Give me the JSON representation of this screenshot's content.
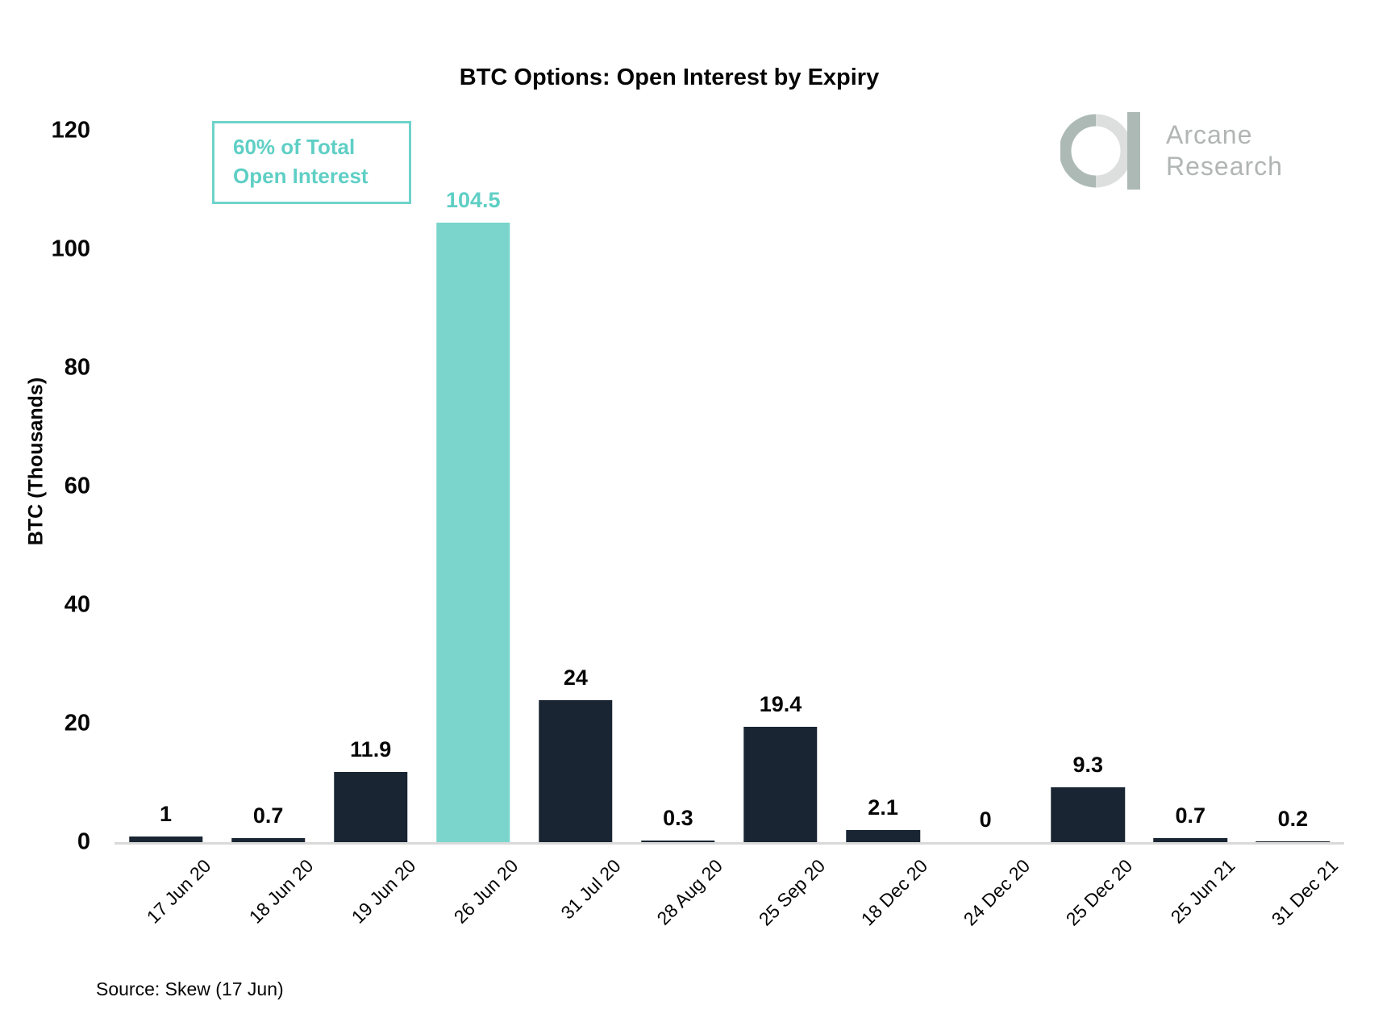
{
  "title": "BTC Options: Open Interest by Expiry",
  "annotation": {
    "line1": "60% of Total",
    "line2": "Open Interest"
  },
  "logo": {
    "line1": "Arcane",
    "line2": "Research",
    "mark": "arcane-a-logo"
  },
  "source": "Source: Skew (17 Jun)",
  "colors": {
    "bar": "#1a2533",
    "highlight_bar": "#7bd5cc",
    "accent_text": "#5fcfc5",
    "annotation_border": "#6fd3ca",
    "axis_line": "#d9d9d9",
    "label_text": "#060606",
    "logo_sage": "#adb9b5",
    "logo_light": "#dcdfdd",
    "logo_text": "#b1b5b4"
  },
  "chart_data": {
    "type": "bar",
    "title": "BTC Options: Open Interest by Expiry",
    "categories": [
      "17 Jun 20",
      "18 Jun 20",
      "19 Jun 20",
      "26 Jun 20",
      "31 Jul 20",
      "28 Aug 20",
      "25 Sep 20",
      "18 Dec 20",
      "24 Dec 20",
      "25 Dec 20",
      "25 Jun 21",
      "31 Dec 21"
    ],
    "values": [
      1,
      0.7,
      11.9,
      104.5,
      24,
      0.3,
      19.4,
      2.1,
      0,
      9.3,
      0.7,
      0.2
    ],
    "bar_labels": [
      "1",
      "0.7",
      "11.9",
      "104.5",
      "24",
      "0.3",
      "19.4",
      "2.1",
      "0",
      "9.3",
      "0.7",
      "0.2"
    ],
    "highlight_index": 3,
    "highlight_note": "60% of Total Open Interest",
    "xlabel": "",
    "ylabel": "BTC  (Thousands)",
    "ylim": [
      0,
      120
    ],
    "yticks": [
      0,
      20,
      40,
      60,
      80,
      100,
      120
    ],
    "grid": false,
    "legend": null,
    "x_tick_rotation_deg": 45
  }
}
